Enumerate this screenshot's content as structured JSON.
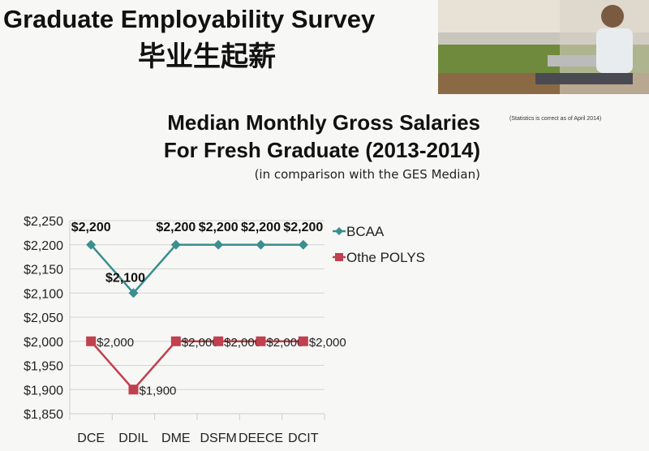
{
  "header": {
    "title": "Graduate Employability Survey",
    "subtitle_cn": "毕业生起薪",
    "note": "(Statistics is correct as of April 2014)"
  },
  "chart_data": {
    "type": "line",
    "title": "Median Monthly Gross Salaries For Fresh Graduate (2013-2014)",
    "title_lines": [
      "Median Monthly Gross Salaries",
      "For Fresh Graduate (2013-2014)"
    ],
    "subtitle": "(in comparison with the GES Median)",
    "categories": [
      "DCE",
      "DDIL",
      "DME",
      "DSFM",
      "DEECE",
      "DCIT"
    ],
    "ylim": [
      1850,
      2250
    ],
    "yticks": [
      1850,
      1900,
      1950,
      2000,
      2050,
      2100,
      2150,
      2200,
      2250
    ],
    "ytick_labels": [
      "$1,850",
      "$1,900",
      "$1,950",
      "$2,000",
      "$2,050",
      "$2,100",
      "$2,150",
      "$2,200",
      "$2,250"
    ],
    "grid": true,
    "legend": "right",
    "series": [
      {
        "name": "BCAA",
        "color": "#3a8f8f",
        "marker": "diamond",
        "values": [
          2200,
          2100,
          2200,
          2200,
          2200,
          2200
        ],
        "labels": [
          "$2,200",
          "$2,100",
          "$2,200",
          "$2,200",
          "$2,200",
          "$2,200"
        ]
      },
      {
        "name": "Othe POLYS",
        "color": "#c0404f",
        "marker": "square",
        "values": [
          2000,
          1900,
          2000,
          2000,
          2000,
          2000
        ],
        "labels": [
          "$2,000",
          "$1,900",
          "$2,000",
          "$2,000",
          "$2,000",
          "$2,000"
        ]
      }
    ]
  }
}
